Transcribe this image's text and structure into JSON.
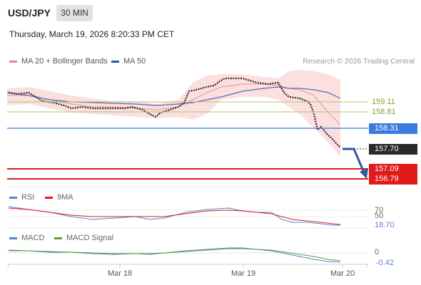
{
  "header": {
    "symbol": "USD/JPY",
    "timeframe": "30 MIN",
    "timestamp": "Thursday, March 19, 2026 8:20:33 PM CET"
  },
  "legend": {
    "ma20": "MA 20 + Bollinger Bands",
    "ma50": "MA 50",
    "ma20_color": "#f08080",
    "ma50_color": "#2d5aa0",
    "copyright": "Research © 2026 Trading Central"
  },
  "levels": {
    "r2": "159.11",
    "r1": "158.81",
    "pivot": "158.31",
    "last": "157.70",
    "s1": "157.09",
    "s2": "156.79"
  },
  "rsi_panel": {
    "label": "RSI",
    "ma_label": "9MA",
    "level_70": "70",
    "level_50": "50",
    "value": "18.70",
    "rsi_color": "#5b7fd6",
    "ma_color": "#e21a1a"
  },
  "macd_panel": {
    "label": "MACD",
    "signal_label": "MACD Signal",
    "zero": "0",
    "value": "-0.42",
    "macd_color": "#5b7fd6",
    "signal_color": "#5aa02a"
  },
  "x_axis": [
    "Mar 18",
    "Mar 19",
    "Mar 20"
  ]
}
